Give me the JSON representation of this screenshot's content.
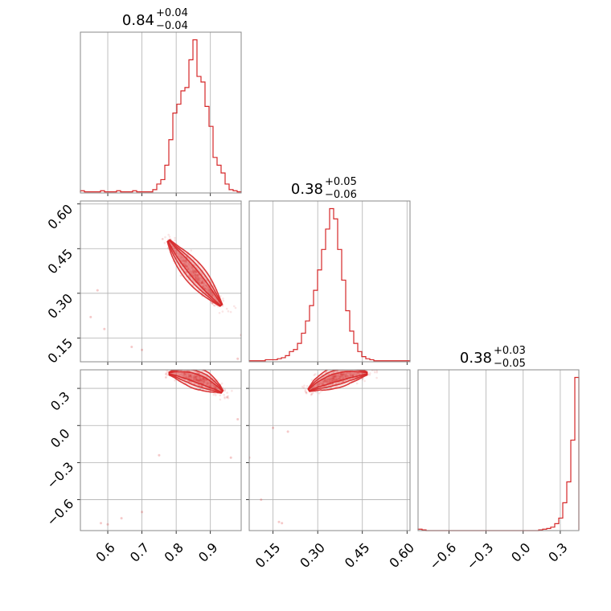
{
  "chart_data": {
    "type": "corner",
    "color": "#d62728",
    "grid": true,
    "parameters": [
      {
        "title_value": "0.84",
        "title_plus": "+0.04",
        "title_minus": "−0.04",
        "range": [
          0.52,
          0.99
        ],
        "ticks": [
          {
            "v": 0.6,
            "label": "0.6"
          },
          {
            "v": 0.7,
            "label": "0.7"
          },
          {
            "v": 0.8,
            "label": "0.8"
          },
          {
            "v": 0.9,
            "label": "0.9"
          }
        ]
      },
      {
        "title_value": "0.38",
        "title_plus": "+0.05",
        "title_minus": "−0.06",
        "range": [
          0.07,
          0.61
        ],
        "ticks": [
          {
            "v": 0.15,
            "label": "0.15"
          },
          {
            "v": 0.3,
            "label": "0.30"
          },
          {
            "v": 0.45,
            "label": "0.45"
          },
          {
            "v": 0.6,
            "label": "0.60"
          }
        ]
      },
      {
        "title_value": "0.38",
        "title_plus": "+0.03",
        "title_minus": "−0.05",
        "range": [
          -0.85,
          0.45
        ],
        "ticks": [
          {
            "v": -0.6,
            "label": "−0.6"
          },
          {
            "v": -0.3,
            "label": "−0.3"
          },
          {
            "v": 0.0,
            "label": "0.0"
          },
          {
            "v": 0.3,
            "label": "0.3"
          }
        ]
      }
    ],
    "histograms": [
      {
        "bin_edges": [
          0.52,
          0.99
        ],
        "counts": [
          2,
          1,
          1,
          1,
          1,
          2,
          1,
          1,
          1,
          2,
          1,
          1,
          1,
          2,
          1,
          1,
          1,
          1,
          3,
          8,
          12,
          25,
          48,
          72,
          80,
          92,
          95,
          120,
          138,
          105,
          100,
          78,
          60,
          32,
          25,
          18,
          8,
          3,
          2,
          1
        ]
      },
      {
        "bin_edges": [
          0.07,
          0.61
        ],
        "counts": [
          1,
          1,
          1,
          1,
          2,
          2,
          2,
          3,
          4,
          6,
          10,
          12,
          18,
          28,
          40,
          55,
          70,
          90,
          110,
          130,
          150,
          140,
          110,
          80,
          50,
          30,
          18,
          10,
          5,
          3,
          2,
          1,
          1,
          1,
          1,
          1,
          1,
          1,
          1,
          1
        ]
      },
      {
        "bin_edges": [
          -0.85,
          0.45
        ],
        "counts": [
          2,
          1,
          0,
          0,
          0,
          0,
          0,
          0,
          0,
          0,
          0,
          0,
          0,
          0,
          0,
          0,
          0,
          0,
          0,
          0,
          0,
          0,
          0,
          0,
          0,
          0,
          0,
          0,
          0,
          0,
          1,
          2,
          3,
          5,
          10,
          18,
          40,
          70,
          130,
          220
        ]
      }
    ],
    "scatter_pairs": [
      {
        "x_param": 0,
        "y_param": 1,
        "center": [
          0.84,
          0.385
        ],
        "trend": [
          [
            0.77,
            0.49
          ],
          [
            0.8,
            0.44
          ],
          [
            0.84,
            0.385
          ],
          [
            0.88,
            0.33
          ],
          [
            0.92,
            0.275
          ],
          [
            0.95,
            0.235
          ]
        ],
        "outliers": [
          [
            0.57,
            0.31
          ],
          [
            0.59,
            0.18
          ],
          [
            0.55,
            0.22
          ],
          [
            0.67,
            0.12
          ],
          [
            0.7,
            0.11
          ],
          [
            0.98,
            0.08
          ],
          [
            0.99,
            0.16
          ]
        ]
      },
      {
        "x_param": 0,
        "y_param": 2,
        "center": [
          0.84,
          0.38
        ],
        "trend": [
          [
            0.77,
            0.42
          ],
          [
            0.8,
            0.42
          ],
          [
            0.84,
            0.4
          ],
          [
            0.88,
            0.36
          ],
          [
            0.92,
            0.3
          ],
          [
            0.95,
            0.24
          ]
        ],
        "outliers": [
          [
            0.6,
            -0.8
          ],
          [
            0.58,
            -0.79
          ],
          [
            0.7,
            -0.7
          ],
          [
            0.64,
            -0.75
          ],
          [
            0.75,
            -0.24
          ],
          [
            0.96,
            -0.26
          ],
          [
            0.98,
            0.05
          ]
        ]
      },
      {
        "x_param": 1,
        "y_param": 2,
        "center": [
          0.385,
          0.38
        ],
        "trend": [
          [
            0.26,
            0.27
          ],
          [
            0.3,
            0.33
          ],
          [
            0.35,
            0.38
          ],
          [
            0.4,
            0.41
          ],
          [
            0.45,
            0.42
          ],
          [
            0.49,
            0.42
          ]
        ],
        "outliers": [
          [
            0.11,
            -0.6
          ],
          [
            0.17,
            -0.78
          ],
          [
            0.18,
            -0.79
          ],
          [
            0.07,
            -0.26
          ],
          [
            0.2,
            -0.05
          ],
          [
            0.15,
            -0.02
          ]
        ]
      }
    ]
  }
}
